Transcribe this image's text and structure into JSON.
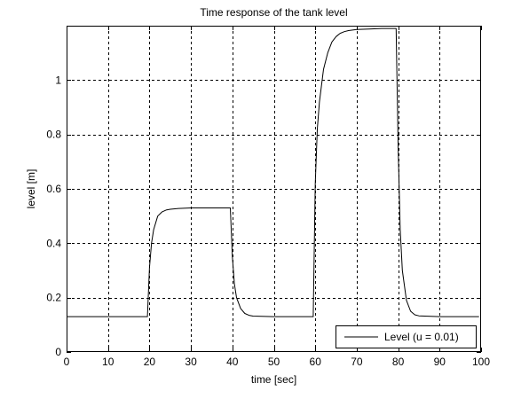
{
  "chart_data": {
    "type": "line",
    "title": "Time response of the tank level",
    "xlabel": "time [sec]",
    "ylabel": "level [m]",
    "xlim": [
      0,
      100
    ],
    "ylim": [
      0,
      1.2
    ],
    "xticks": [
      0,
      10,
      20,
      30,
      40,
      50,
      60,
      70,
      80,
      90,
      100
    ],
    "yticks": [
      0,
      0.2,
      0.4,
      0.6,
      0.8,
      1
    ],
    "xtick_labels": [
      "0",
      "10",
      "20",
      "30",
      "40",
      "50",
      "60",
      "70",
      "80",
      "90",
      "100"
    ],
    "ytick_labels": [
      "0",
      "0.2",
      "0.4",
      "0.6",
      "0.8",
      "1"
    ],
    "grid": true,
    "legend": {
      "position": "bottom-right",
      "entries": [
        "Level (u = 0.01)"
      ]
    },
    "series": [
      {
        "name": "Level (u = 0.01)",
        "color": "#000000",
        "x": [
          0,
          19.5,
          20,
          20.5,
          21,
          22,
          23,
          24,
          25,
          27,
          30,
          35,
          39.5,
          40,
          40.5,
          41,
          42,
          43,
          44,
          45,
          50,
          59.5,
          60,
          60.5,
          61,
          62,
          63,
          64,
          65,
          66,
          67,
          68,
          70,
          73,
          76,
          79.5,
          80,
          80.5,
          81,
          82,
          83,
          84,
          85,
          90,
          99.5
        ],
        "y": [
          0.13,
          0.13,
          0.31,
          0.4,
          0.45,
          0.5,
          0.515,
          0.522,
          0.525,
          0.528,
          0.53,
          0.53,
          0.53,
          0.35,
          0.25,
          0.2,
          0.16,
          0.142,
          0.135,
          0.132,
          0.13,
          0.13,
          0.62,
          0.82,
          0.92,
          1.04,
          1.1,
          1.14,
          1.16,
          1.172,
          1.178,
          1.182,
          1.186,
          1.188,
          1.19,
          1.19,
          0.75,
          0.45,
          0.3,
          0.19,
          0.15,
          0.137,
          0.133,
          0.13,
          0.13
        ]
      }
    ]
  }
}
